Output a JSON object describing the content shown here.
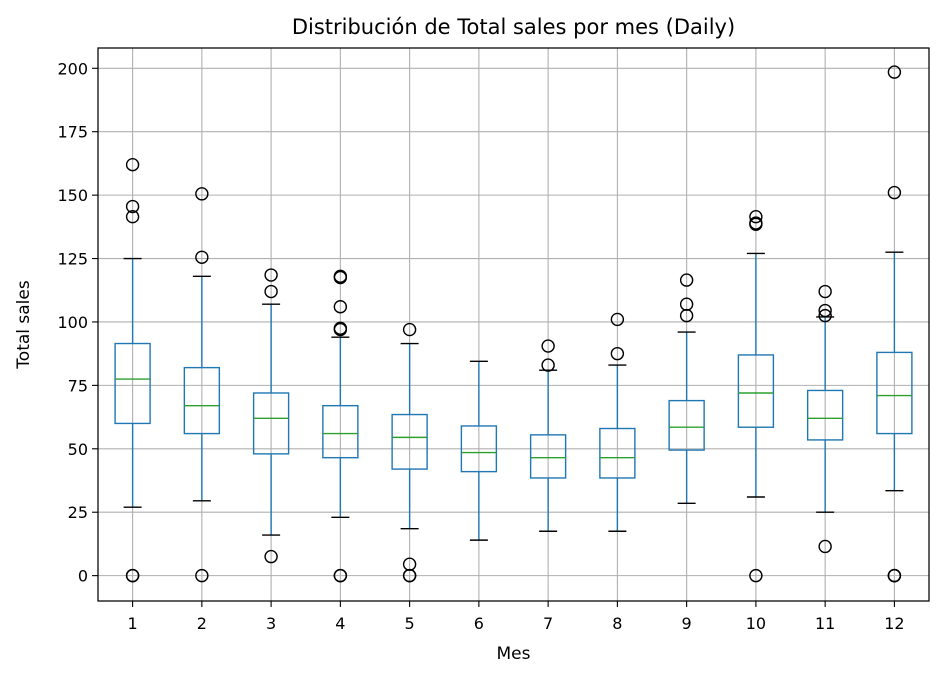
{
  "chart_data": {
    "type": "box",
    "title": "Distribución de Total sales por mes (Daily)",
    "xlabel": "Mes",
    "ylabel": "Total sales",
    "ylim": [
      -10,
      208
    ],
    "yticks": [
      0,
      25,
      50,
      75,
      100,
      125,
      150,
      175,
      200
    ],
    "grid": true,
    "colors": {
      "box": "#1f77b4",
      "median": "#2ca02c",
      "whisker": "#1f77b4",
      "cap": "#000000",
      "flier": "#000000",
      "grid": "#b0b0b0"
    },
    "categories": [
      "1",
      "2",
      "3",
      "4",
      "5",
      "6",
      "7",
      "8",
      "9",
      "10",
      "11",
      "12"
    ],
    "boxes": [
      {
        "month": "1",
        "whisker_low": 27,
        "q1": 60,
        "median": 77.5,
        "q3": 91.5,
        "whisker_high": 125,
        "fliers": [
          0,
          0,
          141.5,
          145.5,
          162
        ]
      },
      {
        "month": "2",
        "whisker_low": 29.5,
        "q1": 56,
        "median": 67,
        "q3": 82,
        "whisker_high": 118,
        "fliers": [
          0,
          125.5,
          150.5
        ]
      },
      {
        "month": "3",
        "whisker_low": 16,
        "q1": 48,
        "median": 62,
        "q3": 72,
        "whisker_high": 107,
        "fliers": [
          7.5,
          112,
          118.5
        ]
      },
      {
        "month": "4",
        "whisker_low": 23,
        "q1": 46.5,
        "median": 56,
        "q3": 67,
        "whisker_high": 94,
        "fliers": [
          0,
          0,
          97,
          97.5,
          106,
          117.5,
          118
        ]
      },
      {
        "month": "5",
        "whisker_low": 18.5,
        "q1": 42,
        "median": 54.5,
        "q3": 63.5,
        "whisker_high": 91.5,
        "fliers": [
          0,
          0,
          4.5,
          97
        ]
      },
      {
        "month": "6",
        "whisker_low": 14,
        "q1": 41,
        "median": 48.5,
        "q3": 59,
        "whisker_high": 84.5,
        "fliers": []
      },
      {
        "month": "7",
        "whisker_low": 17.5,
        "q1": 38.5,
        "median": 46.5,
        "q3": 55.5,
        "whisker_high": 81,
        "fliers": [
          83,
          90.5
        ]
      },
      {
        "month": "8",
        "whisker_low": 17.5,
        "q1": 38.5,
        "median": 46.5,
        "q3": 58,
        "whisker_high": 83,
        "fliers": [
          87.5,
          101
        ]
      },
      {
        "month": "9",
        "whisker_low": 28.5,
        "q1": 49.5,
        "median": 58.5,
        "q3": 69,
        "whisker_high": 96,
        "fliers": [
          102.5,
          107,
          116.5
        ]
      },
      {
        "month": "10",
        "whisker_low": 31,
        "q1": 58.5,
        "median": 72,
        "q3": 87,
        "whisker_high": 127,
        "fliers": [
          0,
          138.5,
          139,
          141.5
        ]
      },
      {
        "month": "11",
        "whisker_low": 25,
        "q1": 53.5,
        "median": 62,
        "q3": 73,
        "whisker_high": 102,
        "fliers": [
          11.5,
          102.5,
          104.5,
          112
        ]
      },
      {
        "month": "12",
        "whisker_low": 33.5,
        "q1": 56,
        "median": 71,
        "q3": 88,
        "whisker_high": 127.5,
        "fliers": [
          0,
          0,
          0,
          151,
          198.5
        ]
      }
    ]
  }
}
